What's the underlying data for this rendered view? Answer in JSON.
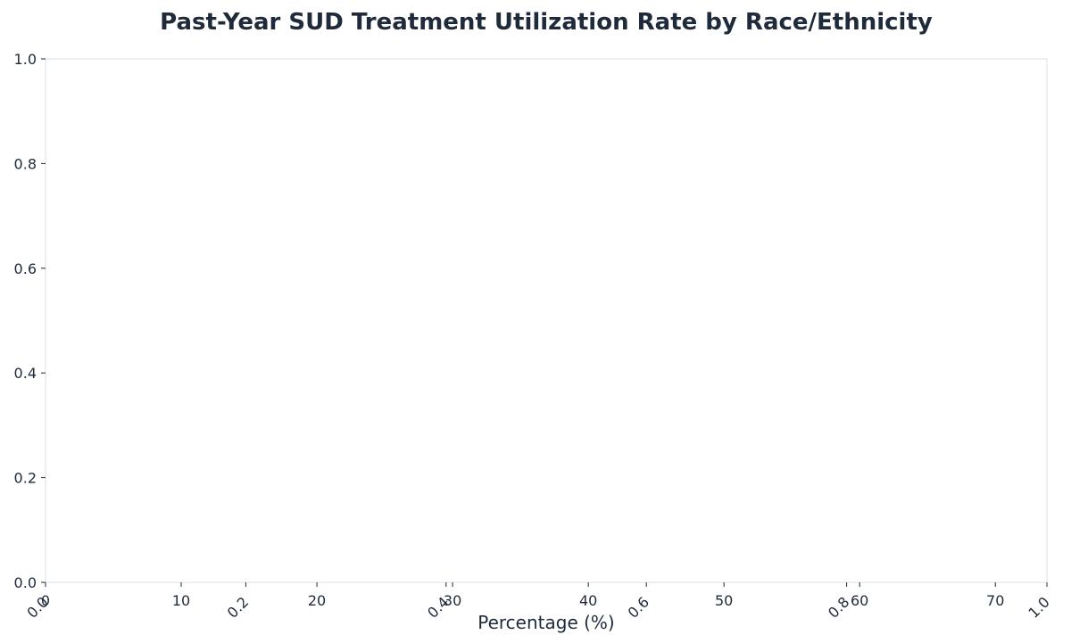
{
  "chart_data": {
    "type": "bar",
    "title": "Past-Year SUD Treatment Utilization Rate by Race/Ethnicity",
    "xlabel": "Percentage (%)",
    "ylabel": "",
    "categories": [],
    "series": [],
    "xlim": [
      0,
      73.8
    ],
    "ylim": [
      0,
      1
    ],
    "x_ticks": [
      "0",
      "10",
      "20",
      "30",
      "40",
      "50",
      "60",
      "70"
    ],
    "secondary_x_ticks": [
      "0.0",
      "0.2",
      "0.4",
      "0.6",
      "0.8",
      "1.0"
    ],
    "y_ticks": [
      "0.0",
      "0.2",
      "0.4",
      "0.6",
      "0.8",
      "1.0"
    ],
    "grid": false,
    "colors": {
      "text": "#1f2a3a",
      "frame": "#dfe5ea"
    }
  }
}
